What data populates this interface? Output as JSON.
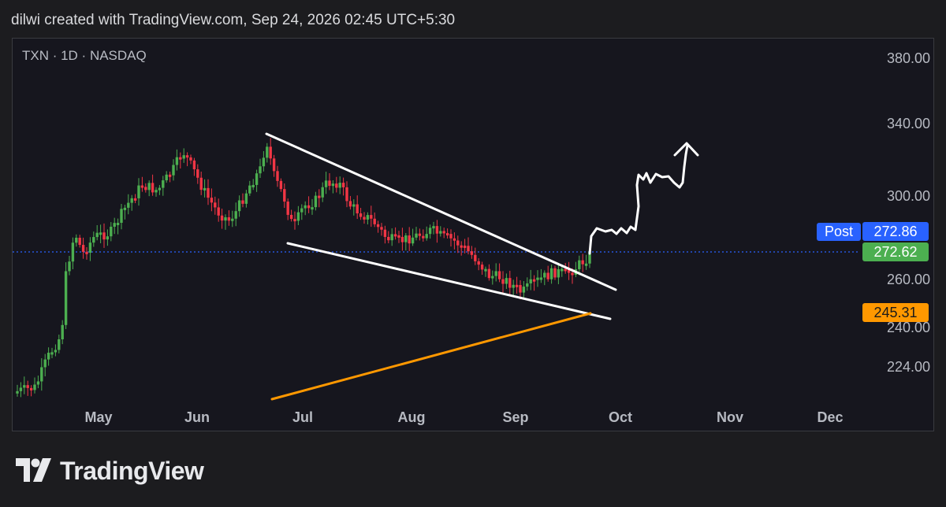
{
  "header": {
    "caption": "dilwi created with TradingView.com, Sep 24, 2026 02:45 UTC+5:30"
  },
  "chart": {
    "symbol_line": "TXN · 1D · NASDAQ"
  },
  "footer": {
    "brand": "TradingView"
  },
  "chart_data": {
    "type": "candlestick",
    "symbol": "TXN",
    "interval": "1D",
    "exchange": "NASDAQ",
    "y_ticks": [
      "380.00",
      "340.00",
      "300.00",
      "260.00",
      "240.00",
      "224.00"
    ],
    "x_ticks": [
      "May",
      "Jun",
      "Jul",
      "Aug",
      "Sep",
      "Oct",
      "Nov",
      "Dec"
    ],
    "price_labels": [
      {
        "label": "Post",
        "value": "272.86",
        "color": "#2962ff"
      },
      {
        "label": "",
        "value": "272.62",
        "color": "#4caf50"
      },
      {
        "label": "",
        "value": "245.31",
        "color": "#ff9800"
      }
    ],
    "current_price": 272.62,
    "grid": false,
    "colors": {
      "up": "#4caf50",
      "down": "#f23645",
      "background": "#16161e",
      "trendline": "#ffffff",
      "support_line": "#ff9800",
      "price_line": "#2962ff"
    },
    "annotations": [
      "falling wedge trendlines",
      "orange rising trendline",
      "hand-drawn breakout path with up arrow"
    ]
  }
}
